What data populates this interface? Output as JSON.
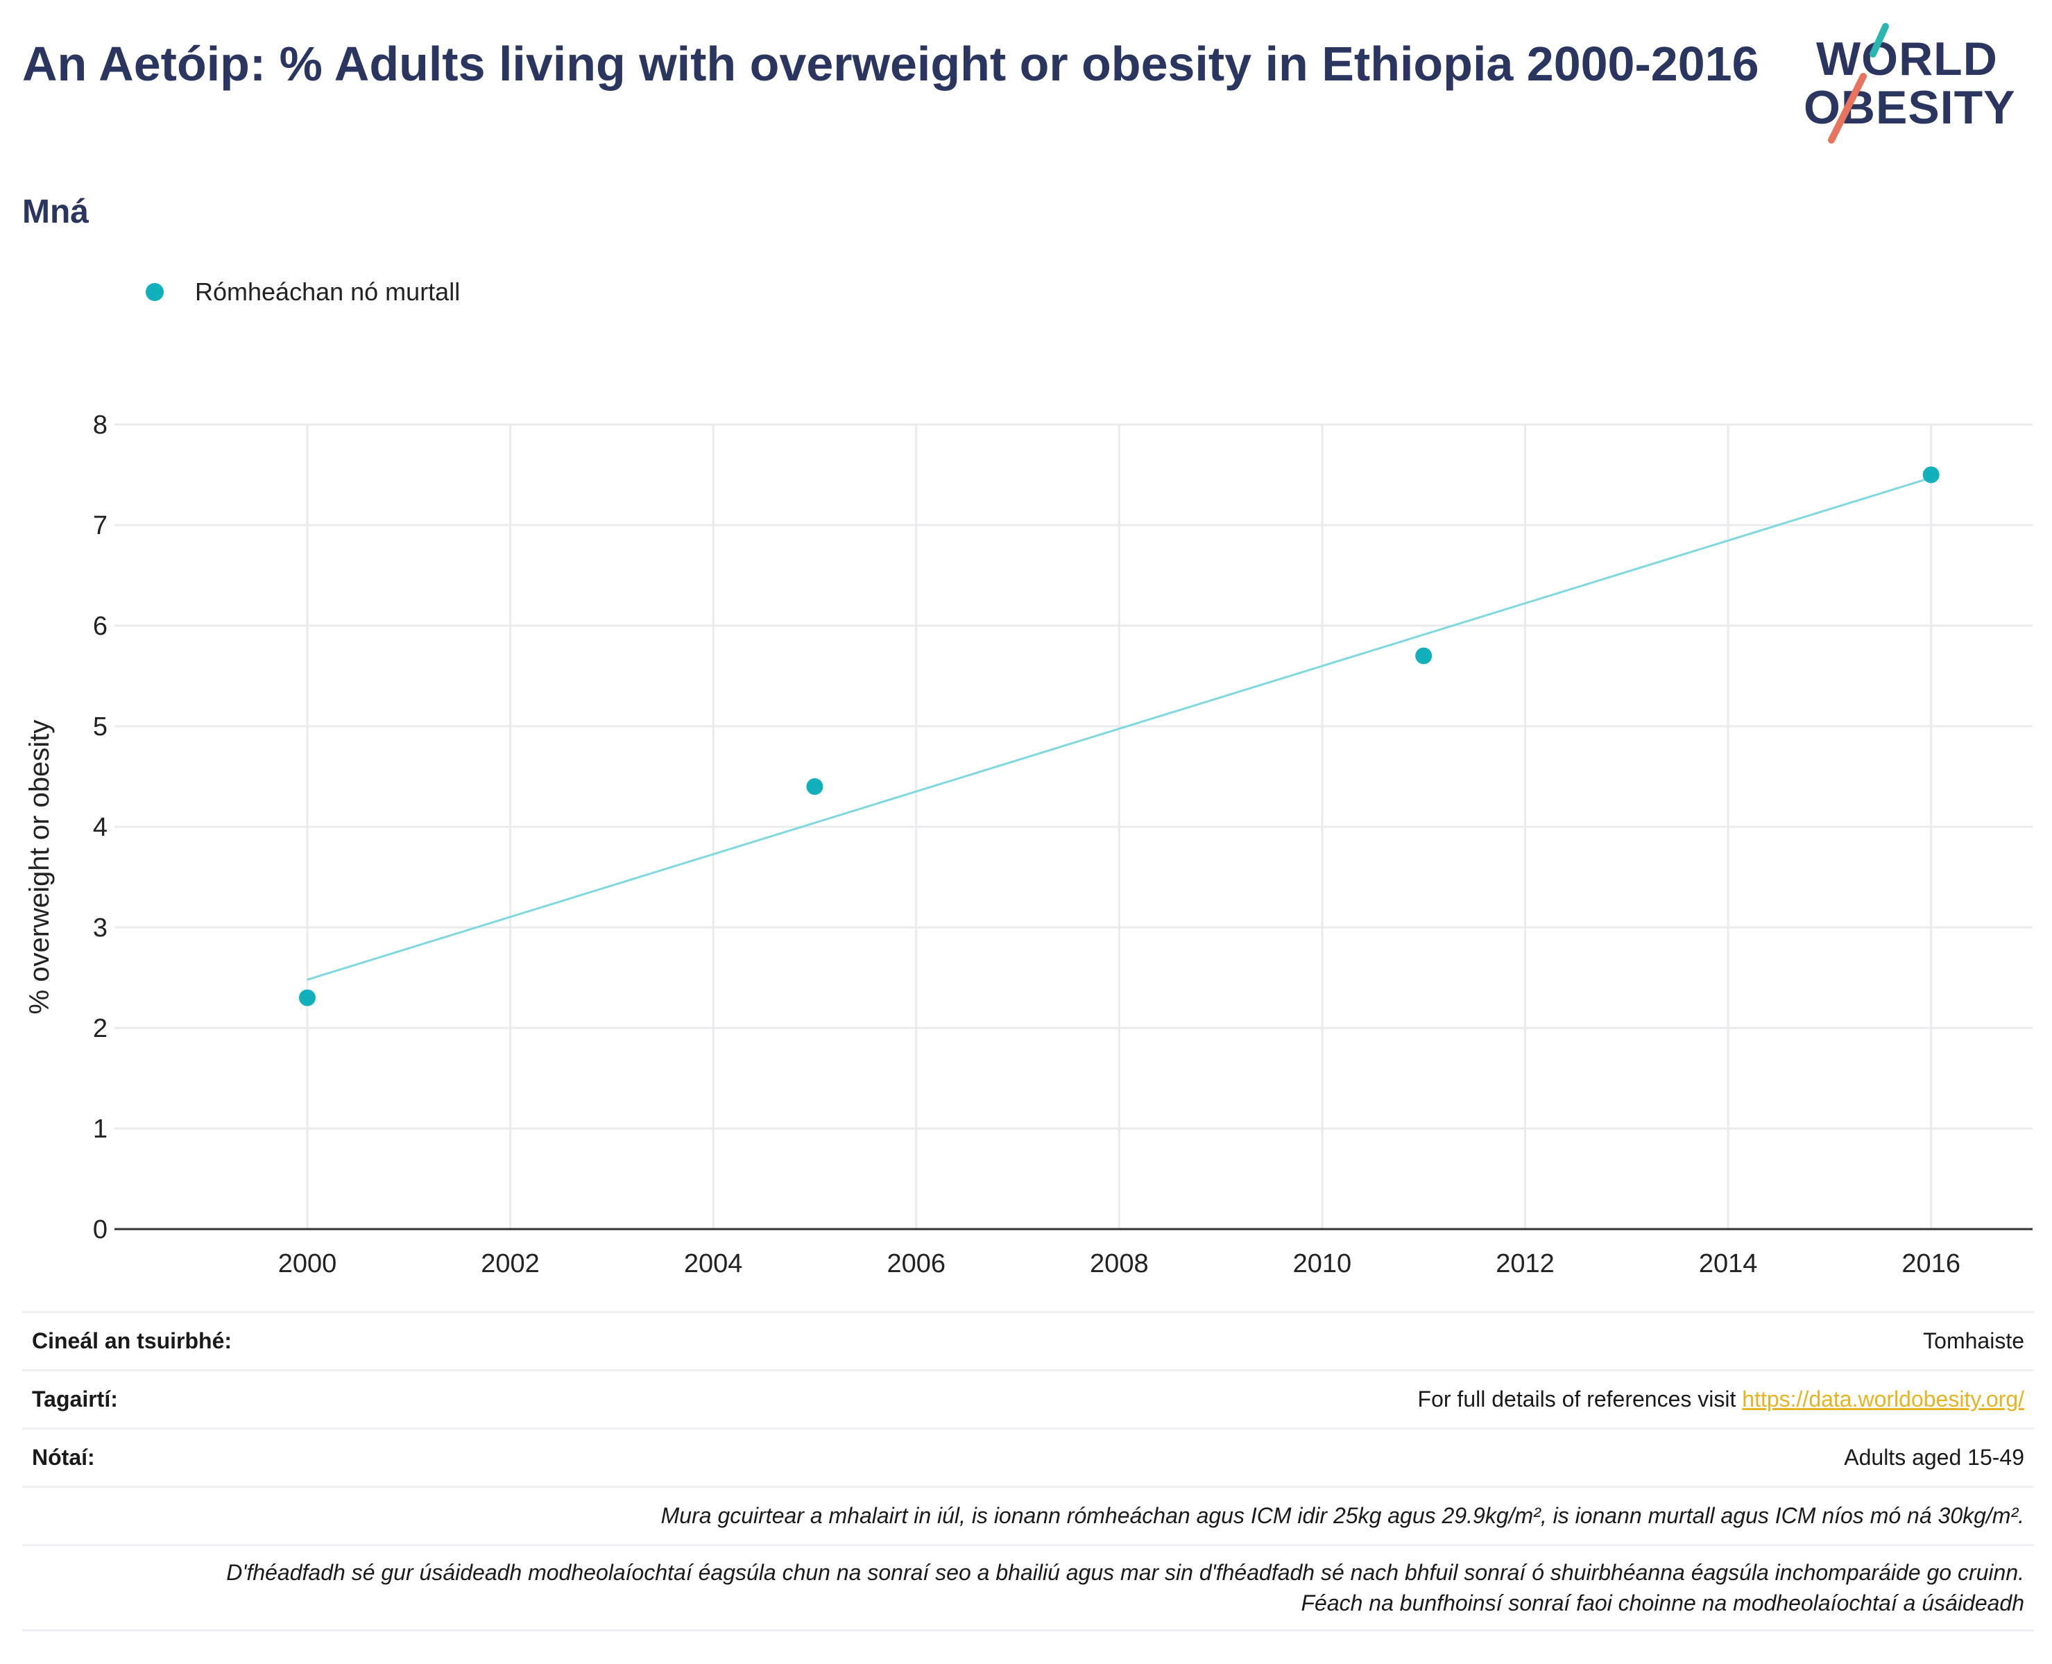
{
  "header": {
    "title": "An Aetóip: % Adults living with overweight or obesity in Ethiopia 2000-2016",
    "subtitle": "Mná",
    "logo_line1": "WORLD",
    "logo_line2": "OBESITY"
  },
  "colors": {
    "accent": "#12b0bb",
    "trend": "#7fd9df",
    "title": "#2a3560",
    "logo_teal": "#2cb6b0",
    "logo_red": "#e8735f",
    "link": "#e8b320"
  },
  "legend": {
    "label": "Rómheáchan nó murtall"
  },
  "chart_data": {
    "type": "scatter",
    "title": "An Aetóip: % Adults living with overweight or obesity in Ethiopia 2000-2016",
    "subtitle": "Mná",
    "xlabel": "",
    "ylabel": "% overweight or obesity",
    "xlim": [
      1998.1,
      2017.0
    ],
    "ylim": [
      0,
      8
    ],
    "xticks": [
      2000,
      2002,
      2004,
      2006,
      2008,
      2010,
      2012,
      2014,
      2016
    ],
    "yticks": [
      0,
      1,
      2,
      3,
      4,
      5,
      6,
      7,
      8
    ],
    "grid": true,
    "legend_position": "top-left",
    "series": [
      {
        "name": "Rómheáchan nó murtall",
        "x": [
          2000,
          2005,
          2011,
          2016
        ],
        "y": [
          2.3,
          4.4,
          5.7,
          7.5
        ]
      }
    ],
    "trendline": {
      "x": [
        2000,
        2016
      ],
      "y": [
        2.48,
        7.47
      ]
    }
  },
  "notes": {
    "survey_type_label": "Cineál an tsuirbhé:",
    "survey_type_value": "Tomhaiste",
    "references_label": "Tagairtí:",
    "references_text": "For full details of references visit ",
    "references_link": "https://data.worldobesity.org/",
    "notes_label": "Nótaí:",
    "notes_value": "Adults aged 15-49",
    "bmi_note": "Mura gcuirtear a mhalairt in iúl, is ionann rómheáchan agus ICM idir 25kg agus 29.9kg/m², is ionann murtall agus ICM níos mó ná 30kg/m².",
    "method_note_1": "D'fhéadfadh sé gur úsáideadh modheolaíochtaí éagsúla chun na sonraí seo a bhailiú agus mar sin d'fhéadfadh sé nach bhfuil sonraí ó shuirbhéanna éagsúla inchomparáide go cruinn.",
    "method_note_2": "Féach na bunfhoinsí sonraí faoi choinne na modheolaíochtaí a úsáideadh"
  }
}
